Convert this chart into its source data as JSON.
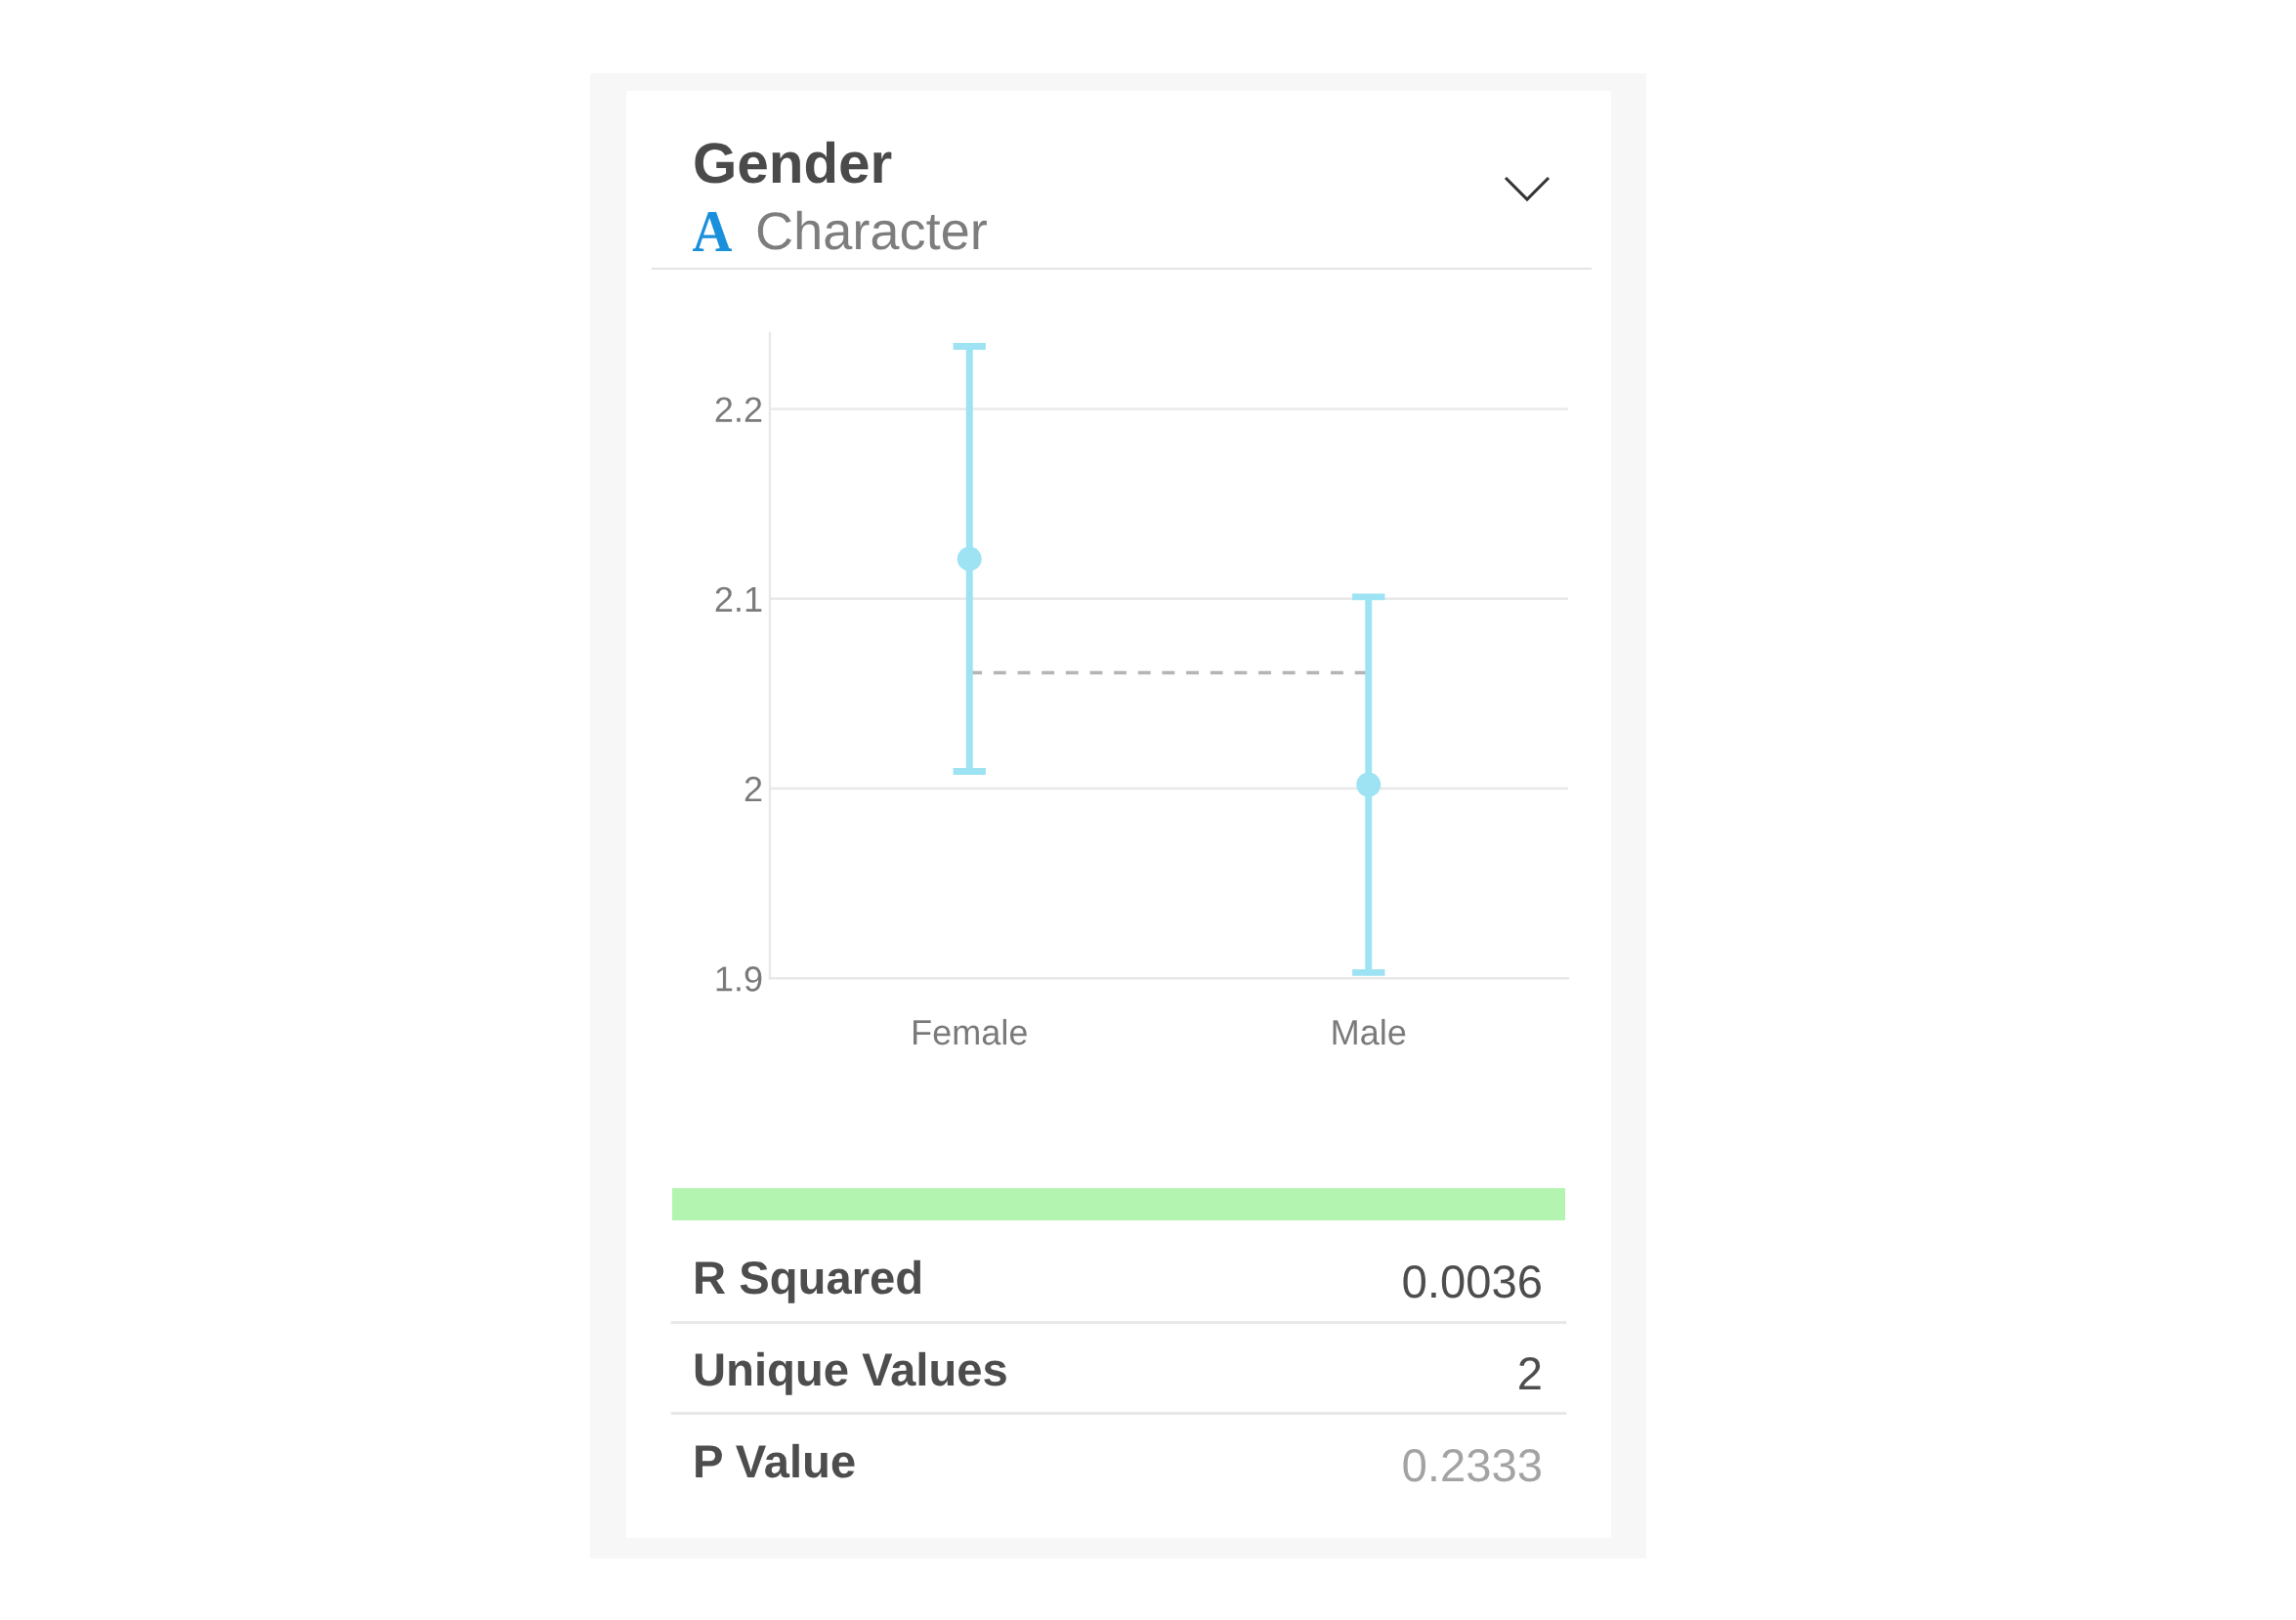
{
  "chart_data": {
    "type": "scatter",
    "title": "Gender",
    "subtitle": "Character",
    "categories": [
      "Female",
      "Male"
    ],
    "values": [
      2.121,
      2.002
    ],
    "errors": [
      0.112,
      0.099
    ],
    "color": "#9de3f3",
    "marker": "circle",
    "ylim": [
      1.9,
      2.24
    ],
    "yticks": [
      1.9,
      2,
      2.1,
      2.2
    ],
    "grid": "y",
    "ref_lines": [
      {
        "axis": "y",
        "value": 2.061,
        "color": "#b5b5b5",
        "line_style": "dashed"
      }
    ],
    "annotations": [
      "R Squared",
      "0.0036",
      "Unique Values",
      "2",
      "P Value",
      "0.2333"
    ]
  }
}
